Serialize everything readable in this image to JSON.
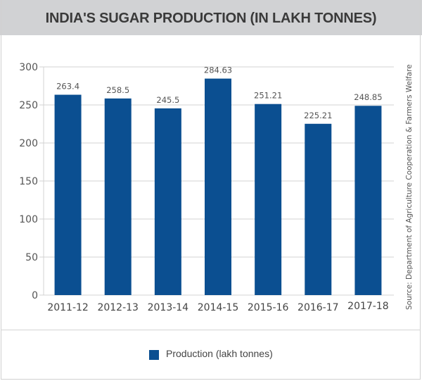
{
  "chart_data": {
    "type": "bar",
    "title": "INDIA'S SUGAR PRODUCTION (IN LAKH TONNES)",
    "categories": [
      "2011-12",
      "2012-13",
      "2013-14",
      "2014-15",
      "2015-16",
      "2016-17",
      "2017-18"
    ],
    "series": [
      {
        "name": "Production (lakh tonnes)",
        "color": "#0b4f91",
        "values": [
          263.4,
          258.5,
          245.5,
          284.63,
          251.21,
          225.21,
          248.85
        ],
        "data_labels": [
          "263.4",
          "258.5",
          "245.5",
          "284.63",
          "251.21",
          "225.21",
          "248.85"
        ]
      }
    ],
    "xlabel": "",
    "ylabel": "",
    "ylim": [
      0,
      300
    ],
    "yticks": [
      0,
      50,
      100,
      150,
      200,
      250,
      300
    ],
    "ytick_labels": [
      "0",
      "50",
      "100",
      "150",
      "200",
      "250",
      "300"
    ],
    "grid": true,
    "legend": {
      "position": "bottom",
      "entries": [
        "Production (lakh tonnes)"
      ]
    },
    "annotations": [
      "Source: Department of Agriculture Cooperation & Farmers Welfare"
    ]
  }
}
